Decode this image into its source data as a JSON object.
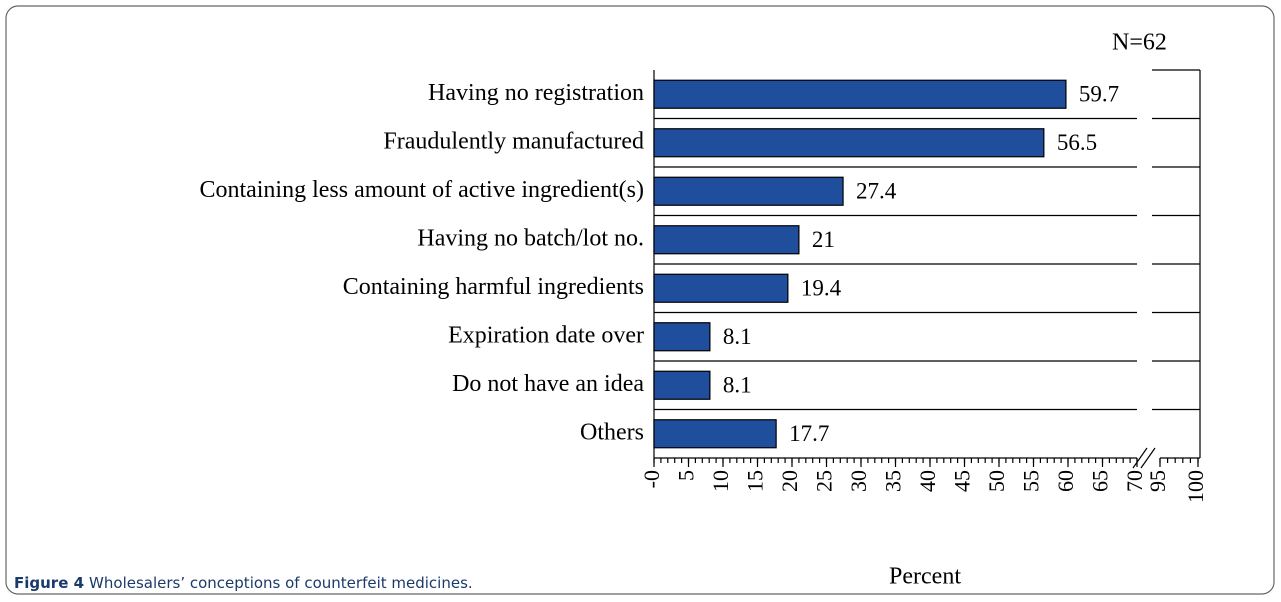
{
  "chart_data": {
    "type": "bar",
    "orientation": "horizontal",
    "annotation": "N=62",
    "categories": [
      "Having no registration",
      "Fraudulently manufactured",
      "Containing less amount of active ingredient(s)",
      "Having no batch/lot no.",
      "Containing harmful ingredients",
      "Expiration date over",
      "Do not have an idea",
      "Others"
    ],
    "values": [
      59.7,
      56.5,
      27.4,
      21,
      19.4,
      8.1,
      8.1,
      17.7
    ],
    "color": "#1f4e9c",
    "xlabel": "Percent",
    "xlim": [
      0,
      100
    ],
    "xbreak": [
      70,
      95
    ],
    "xticks": [
      {
        "value": 0,
        "label": "-0"
      },
      5,
      10,
      15,
      20,
      25,
      30,
      35,
      40,
      45,
      50,
      55,
      60,
      65,
      70,
      95,
      100
    ],
    "minor_ticks": true,
    "caption_label": "Figure 4",
    "caption": "Wholesalers’ conceptions of counterfeit medicines."
  }
}
